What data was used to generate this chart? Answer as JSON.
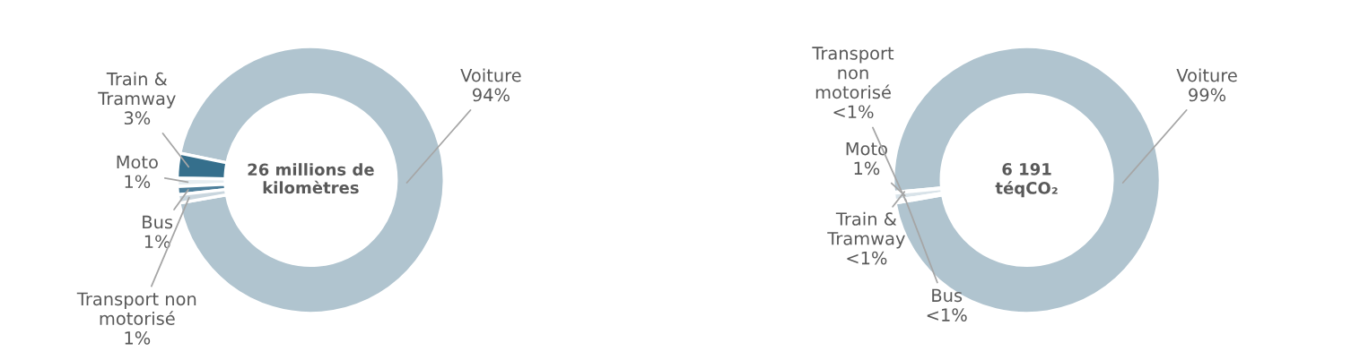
{
  "chart_data": [
    {
      "type": "donut",
      "title": "26 millions de kilomètres",
      "categories": [
        "Voiture",
        "Train & Tramway",
        "Moto",
        "Bus",
        "Transport non motorisé"
      ],
      "values": [
        94,
        3,
        1,
        1,
        1
      ],
      "value_labels": [
        "94%",
        "3%",
        "1%",
        "1%",
        "1%"
      ],
      "colors": [
        "#b0c4cf",
        "#356f8c",
        "#e6edf1",
        "#4d7f9b",
        "#c9d6de"
      ]
    },
    {
      "type": "donut",
      "title": "6 191 téqCO₂",
      "categories": [
        "Voiture",
        "Train & Tramway",
        "Moto",
        "Bus",
        "Transport non motorisé"
      ],
      "values": [
        98.7,
        0.1,
        0.9,
        0.1,
        0.2
      ],
      "value_labels": [
        "99%",
        "<1%",
        "1%",
        "<1%",
        "<1%"
      ],
      "colors": [
        "#b0c4cf",
        "#356f8c",
        "#d9e3e9",
        "#4d7f9b",
        "#c9d6de"
      ]
    }
  ]
}
